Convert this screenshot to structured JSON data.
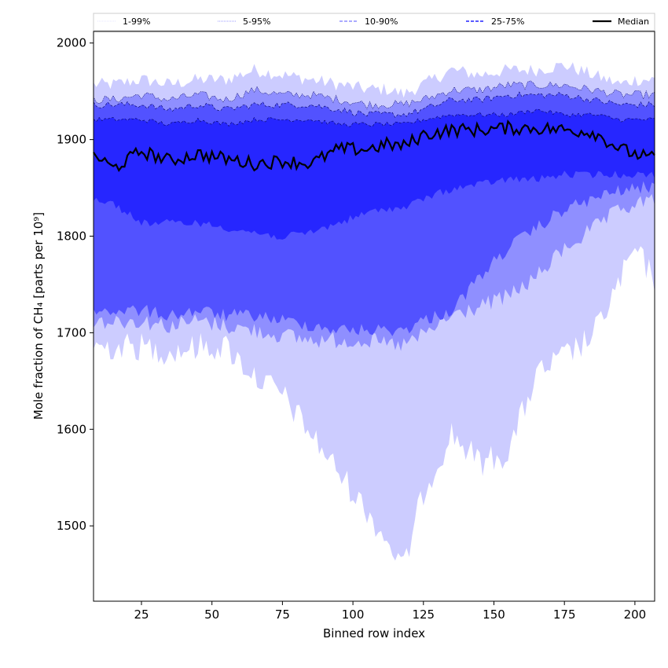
{
  "chart_data": {
    "type": "area",
    "xlabel": "Binned row index",
    "ylabel": "Mole fraction of CH₄ [parts per 10⁹]",
    "xlim": [
      8,
      207
    ],
    "ylim": [
      1422,
      2012
    ],
    "x_ticks": [
      25,
      50,
      75,
      100,
      125,
      150,
      175,
      200
    ],
    "y_ticks": [
      1500,
      1600,
      1700,
      1800,
      1900,
      2000
    ],
    "grid": false,
    "legend_position": "top",
    "colors": {
      "band_1_99": "#ccccff",
      "band_5_95": "#8f8fff",
      "band_10_90": "#5252ff",
      "band_25_75": "#2626ff",
      "median": "#000000"
    },
    "knot_x": [
      8,
      15,
      25,
      35,
      45,
      55,
      65,
      75,
      85,
      95,
      105,
      112,
      118,
      125,
      135,
      145,
      155,
      165,
      175,
      185,
      195,
      200,
      207
    ],
    "series": [
      {
        "name": "1-99%",
        "lower": [
          1690,
          1690,
          1690,
          1685,
          1690,
          1690,
          1660,
          1640,
          1600,
          1560,
          1520,
          1490,
          1460,
          1540,
          1600,
          1570,
          1580,
          1660,
          1680,
          1700,
          1760,
          1790,
          1760
        ],
        "upper": [
          1955,
          1955,
          1960,
          1955,
          1960,
          1960,
          1970,
          1965,
          1960,
          1955,
          1950,
          1950,
          1945,
          1955,
          1970,
          1965,
          1970,
          1970,
          1975,
          1965,
          1955,
          1960,
          1960
        ]
      },
      {
        "name": "5-95%",
        "lower": [
          1715,
          1715,
          1715,
          1710,
          1715,
          1710,
          1705,
          1700,
          1695,
          1695,
          1695,
          1690,
          1690,
          1700,
          1720,
          1730,
          1740,
          1760,
          1790,
          1810,
          1830,
          1835,
          1840
        ],
        "upper": [
          1940,
          1940,
          1945,
          1940,
          1945,
          1940,
          1950,
          1945,
          1945,
          1940,
          1935,
          1935,
          1935,
          1940,
          1950,
          1950,
          1955,
          1955,
          1955,
          1950,
          1945,
          1945,
          1945
        ]
      },
      {
        "name": "10-90%",
        "lower": [
          1725,
          1725,
          1725,
          1720,
          1725,
          1720,
          1720,
          1715,
          1710,
          1705,
          1705,
          1705,
          1705,
          1715,
          1725,
          1760,
          1790,
          1810,
          1830,
          1840,
          1850,
          1850,
          1855
        ],
        "upper": [
          1935,
          1935,
          1935,
          1930,
          1935,
          1930,
          1935,
          1935,
          1935,
          1930,
          1925,
          1925,
          1925,
          1930,
          1940,
          1940,
          1945,
          1945,
          1945,
          1940,
          1935,
          1935,
          1935
        ]
      },
      {
        "name": "25-75%",
        "lower": [
          1840,
          1835,
          1815,
          1815,
          1815,
          1810,
          1805,
          1800,
          1805,
          1815,
          1825,
          1830,
          1830,
          1840,
          1850,
          1855,
          1860,
          1860,
          1865,
          1865,
          1865,
          1865,
          1865
        ],
        "upper": [
          1920,
          1920,
          1920,
          1915,
          1920,
          1915,
          1920,
          1920,
          1920,
          1915,
          1915,
          1915,
          1915,
          1920,
          1925,
          1925,
          1925,
          1930,
          1925,
          1925,
          1920,
          1920,
          1920
        ]
      },
      {
        "name": "Median",
        "values": [
          1885,
          1870,
          1888,
          1878,
          1885,
          1880,
          1875,
          1878,
          1875,
          1890,
          1890,
          1895,
          1893,
          1905,
          1910,
          1910,
          1912,
          1912,
          1910,
          1908,
          1890,
          1885,
          1880
        ]
      }
    ]
  }
}
